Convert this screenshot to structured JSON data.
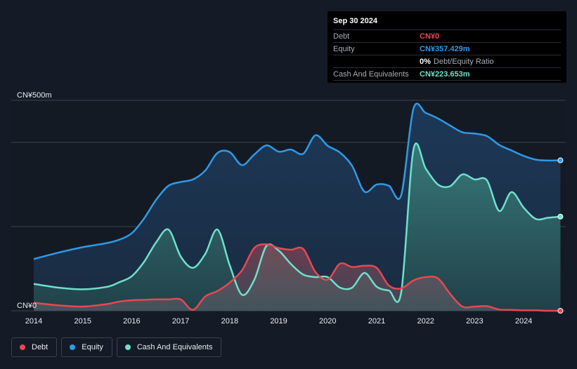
{
  "tooltip": {
    "date": "Sep 30 2024",
    "rows": [
      {
        "label": "Debt",
        "value": "CN¥0",
        "extra": ""
      },
      {
        "label": "Equity",
        "value": "CN¥357.429m",
        "extra": ""
      },
      {
        "label": "",
        "value": "0%",
        "extra": "Debt/Equity Ratio"
      },
      {
        "label": "Cash And Equivalents",
        "value": "CN¥223.653m",
        "extra": ""
      }
    ]
  },
  "legend": [
    {
      "label": "Debt",
      "color": "#e64852"
    },
    {
      "label": "Equity",
      "color": "#2f9ae6"
    },
    {
      "label": "Cash And Equivalents",
      "color": "#6fe0cc"
    }
  ],
  "colors": {
    "background": "#151b26",
    "debt": "#e64852",
    "equity": "#2f9ae6",
    "cash": "#6fe0cc",
    "grid": "#3a4150"
  },
  "chart_data": {
    "type": "area",
    "ylim": [
      0,
      500
    ],
    "xlim": [
      2014.0,
      2024.83
    ],
    "y_tick_labels": [
      {
        "value": 500,
        "label": "CN¥500m"
      },
      {
        "value": 0,
        "label": "CN¥0"
      }
    ],
    "x_tick_labels": [
      "2014",
      "2015",
      "2016",
      "2017",
      "2018",
      "2019",
      "2020",
      "2021",
      "2022",
      "2023",
      "2024"
    ],
    "series": [
      {
        "name": "Equity",
        "x": [
          2014.0,
          2014.5,
          2015.0,
          2015.5,
          2015.75,
          2016.0,
          2016.25,
          2016.5,
          2016.75,
          2017.0,
          2017.25,
          2017.5,
          2017.75,
          2018.0,
          2018.25,
          2018.5,
          2018.75,
          2019.0,
          2019.25,
          2019.5,
          2019.75,
          2020.0,
          2020.25,
          2020.5,
          2020.75,
          2021.0,
          2021.25,
          2021.5,
          2021.75,
          2022.0,
          2022.25,
          2022.5,
          2022.75,
          2023.0,
          2023.25,
          2023.5,
          2023.75,
          2024.0,
          2024.25,
          2024.5,
          2024.75
        ],
        "values": [
          123,
          138,
          151,
          161,
          169,
          184,
          219,
          264,
          297,
          306,
          312,
          333,
          375,
          377,
          346,
          371,
          393,
          378,
          383,
          373,
          417,
          392,
          376,
          344,
          283,
          300,
          297,
          275,
          480,
          470,
          457,
          440,
          424,
          421,
          415,
          394,
          381,
          368,
          359,
          357,
          357.429
        ]
      },
      {
        "name": "Cash And Equivalents",
        "x": [
          2014.0,
          2014.5,
          2015.0,
          2015.5,
          2015.75,
          2016.0,
          2016.25,
          2016.5,
          2016.75,
          2017.0,
          2017.25,
          2017.5,
          2017.75,
          2018.0,
          2018.25,
          2018.5,
          2018.75,
          2019.0,
          2019.25,
          2019.5,
          2019.75,
          2020.0,
          2020.25,
          2020.5,
          2020.75,
          2021.0,
          2021.25,
          2021.5,
          2021.75,
          2022.0,
          2022.25,
          2022.5,
          2022.75,
          2023.0,
          2023.25,
          2023.5,
          2023.75,
          2024.0,
          2024.25,
          2024.5,
          2024.75
        ],
        "values": [
          64,
          55,
          51,
          57,
          68,
          82,
          116,
          163,
          193,
          129,
          102,
          135,
          193,
          108,
          38,
          73,
          154,
          143,
          111,
          86,
          80,
          80,
          55,
          55,
          90,
          57,
          48,
          44,
          383,
          338,
          300,
          296,
          324,
          312,
          310,
          237,
          282,
          245,
          218,
          221,
          223.653
        ]
      },
      {
        "name": "Debt",
        "x": [
          2014.0,
          2014.5,
          2015.0,
          2015.5,
          2015.75,
          2016.0,
          2016.25,
          2016.5,
          2016.75,
          2017.0,
          2017.25,
          2017.5,
          2017.75,
          2018.0,
          2018.25,
          2018.5,
          2018.75,
          2019.0,
          2019.25,
          2019.5,
          2019.75,
          2020.0,
          2020.25,
          2020.5,
          2020.75,
          2021.0,
          2021.25,
          2021.5,
          2021.75,
          2022.0,
          2022.25,
          2022.5,
          2022.75,
          2023.0,
          2023.25,
          2023.5,
          2023.75,
          2024.0,
          2024.25,
          2024.5,
          2024.75
        ],
        "values": [
          19,
          13,
          10,
          16,
          22,
          25,
          26,
          27,
          27,
          27,
          2,
          34,
          47,
          67,
          96,
          149,
          158,
          149,
          145,
          147,
          92,
          74,
          112,
          104,
          107,
          102,
          60,
          53,
          72,
          80,
          77,
          40,
          10,
          10,
          11,
          3,
          2,
          1,
          1,
          0,
          0
        ]
      }
    ]
  }
}
